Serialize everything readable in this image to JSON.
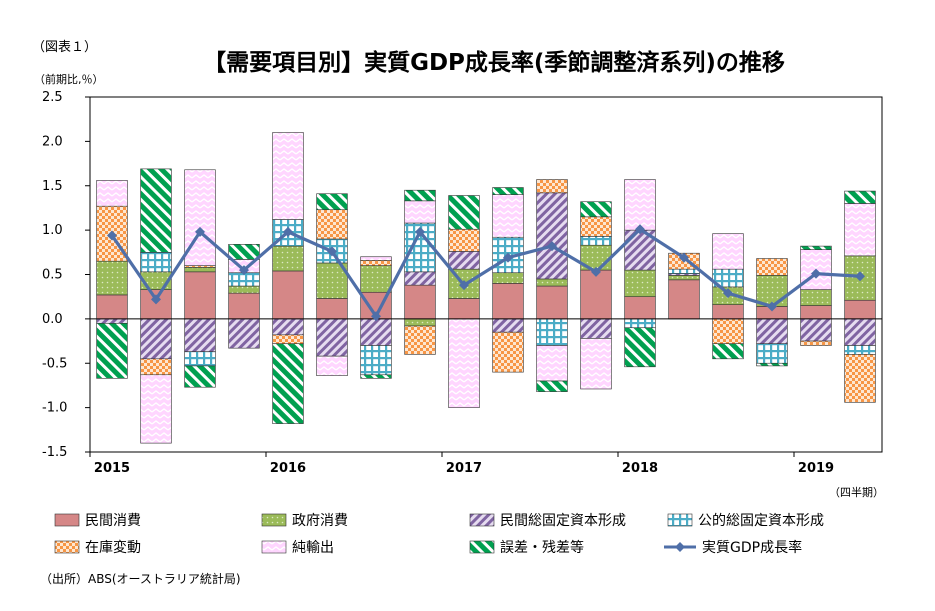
{
  "chart_data": {
    "type": "bar",
    "fig_label": "（図表１）",
    "title": "【需要項目別】実質GDP成長率(季節調整済系列)の推移",
    "ylabel": "（前期比,％）",
    "xunit": "（四半期）",
    "source": "（出所）ABS(オーストラリア統計局)",
    "ylim": [
      -1.5,
      2.5
    ],
    "yticks": [
      "2.5",
      "2.0",
      "1.5",
      "1.0",
      "0.5",
      "0.0",
      "-0.5",
      "-1.0",
      "-1.5"
    ],
    "ytick_values": [
      2.5,
      2.0,
      1.5,
      1.0,
      0.5,
      0.0,
      -0.5,
      -1.0,
      -1.5
    ],
    "grid": false,
    "legend_position": "bottom",
    "stacked": true,
    "categories": [
      "2015Q1",
      "2015Q2",
      "2015Q3",
      "2015Q4",
      "2016Q1",
      "2016Q2",
      "2016Q3",
      "2016Q4",
      "2017Q1",
      "2017Q2",
      "2017Q3",
      "2017Q4",
      "2018Q1",
      "2018Q2",
      "2018Q3",
      "2018Q4",
      "2019Q1",
      "2019Q2"
    ],
    "year_labels": [
      {
        "label": "2015",
        "index": 0
      },
      {
        "label": "2016",
        "index": 4
      },
      {
        "label": "2017",
        "index": 8
      },
      {
        "label": "2018",
        "index": 12
      },
      {
        "label": "2019",
        "index": 16
      }
    ],
    "series": [
      {
        "name": "民間消費",
        "pattern": "solid",
        "color": "#d58787",
        "values": [
          0.27,
          0.33,
          0.53,
          0.29,
          0.54,
          0.23,
          0.3,
          0.38,
          0.23,
          0.4,
          0.37,
          0.55,
          0.25,
          0.44,
          0.16,
          0.14,
          0.15,
          0.21
        ]
      },
      {
        "name": "政府消費",
        "pattern": "dots",
        "color": "#9bbb59",
        "values": [
          0.38,
          0.2,
          0.05,
          0.08,
          0.28,
          0.4,
          0.3,
          -0.08,
          0.33,
          0.12,
          0.08,
          0.28,
          0.3,
          0.05,
          0.2,
          0.35,
          0.18,
          0.5
        ]
      },
      {
        "name": "民間総固定資本形成",
        "pattern": "hatch",
        "color": "#8064a2",
        "values": [
          -0.05,
          -0.45,
          -0.37,
          -0.33,
          -0.18,
          -0.42,
          -0.3,
          0.15,
          0.2,
          -0.15,
          0.97,
          -0.22,
          0.45,
          0.02,
          0.0,
          -0.28,
          -0.25,
          -0.3
        ]
      },
      {
        "name": "公的総固定資本形成",
        "pattern": "grid",
        "color": "#4bacc6",
        "values": [
          0.0,
          0.22,
          -0.16,
          0.15,
          0.3,
          0.27,
          -0.33,
          0.55,
          0.0,
          0.4,
          -0.3,
          0.1,
          -0.1,
          0.05,
          0.2,
          -0.22,
          0.0,
          -0.1
        ]
      },
      {
        "name": "在庫変動",
        "pattern": "checker",
        "color": "#f79646",
        "values": [
          0.62,
          -0.18,
          0.02,
          0.0,
          -0.1,
          0.33,
          0.06,
          -0.32,
          0.25,
          -0.45,
          0.15,
          0.22,
          0.0,
          0.18,
          -0.28,
          0.19,
          -0.05,
          -0.54
        ]
      },
      {
        "name": "純輸出",
        "pattern": "zigzag",
        "color": "#ff99ff",
        "values": [
          0.29,
          -0.77,
          1.08,
          0.15,
          0.98,
          -0.22,
          0.04,
          0.25,
          -1.0,
          0.48,
          -0.4,
          -0.57,
          0.57,
          0.0,
          0.4,
          0.0,
          0.45,
          0.59
        ]
      },
      {
        "name": "誤差・残差等",
        "pattern": "stripe",
        "color": "#00a050",
        "values": [
          -0.62,
          0.94,
          -0.24,
          0.17,
          -0.9,
          0.18,
          -0.04,
          0.12,
          0.38,
          0.08,
          -0.12,
          0.17,
          -0.44,
          0.0,
          -0.17,
          -0.03,
          0.04,
          0.14
        ]
      }
    ],
    "line": {
      "name": "実質GDP成長率",
      "color": "#4f6fa8",
      "values": [
        0.94,
        0.22,
        0.98,
        0.55,
        0.98,
        0.76,
        0.03,
        0.98,
        0.38,
        0.69,
        0.82,
        0.53,
        1.01,
        0.69,
        0.29,
        0.14,
        0.51,
        0.48
      ]
    }
  }
}
